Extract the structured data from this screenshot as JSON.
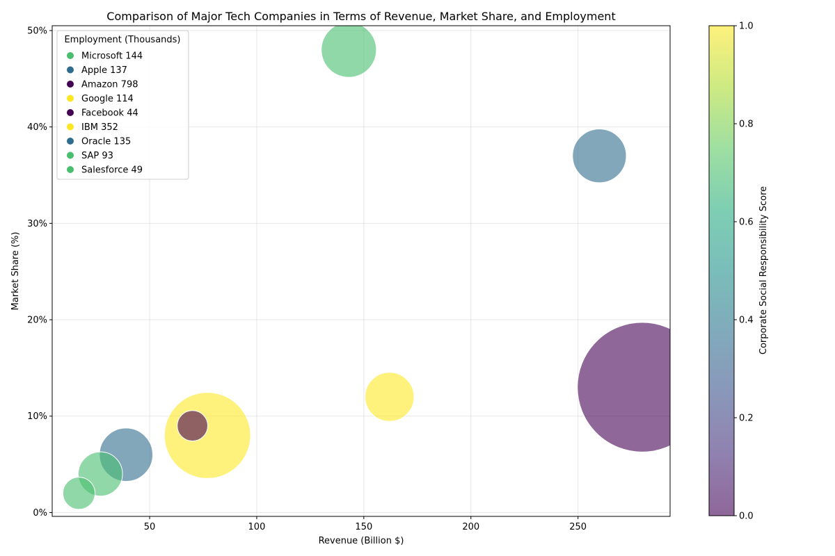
{
  "chart_data": {
    "type": "scatter",
    "title": "Comparison of Major Tech Companies in Terms of Revenue, Market Share, and Employment",
    "xlabel": "Revenue (Billion $)",
    "ylabel": "Market Share (%)",
    "xlim": [
      4.5,
      293
    ],
    "ylim": [
      -0.4,
      50.5
    ],
    "x_ticks": [
      50,
      100,
      150,
      200,
      250
    ],
    "y_ticks": [
      0,
      10,
      20,
      30,
      40,
      50
    ],
    "y_tick_suffix": "%",
    "grid": true,
    "colorbar": {
      "label": "Corporate Social Responsibility Score",
      "range": [
        0,
        1
      ],
      "ticks": [
        "0.0",
        "0.2",
        "0.4",
        "0.6",
        "0.8",
        "1.0"
      ],
      "colormap": "viridis"
    },
    "legend": {
      "title": "Employment (Thousands)",
      "placement": "top-left"
    },
    "points": [
      {
        "company": "Microsoft",
        "label": "Microsoft 144",
        "revenue": 143,
        "market_share": 48,
        "employment": 144,
        "csr": 0.7
      },
      {
        "company": "Apple",
        "label": "Apple 137",
        "revenue": 260,
        "market_share": 37,
        "employment": 137,
        "csr": 0.35
      },
      {
        "company": "Amazon",
        "label": "Amazon 798",
        "revenue": 280,
        "market_share": 13,
        "employment": 798,
        "csr": 0.0
      },
      {
        "company": "Google",
        "label": "Google 114",
        "revenue": 162,
        "market_share": 12,
        "employment": 114,
        "csr": 1.0
      },
      {
        "company": "Facebook",
        "label": "Facebook 44",
        "revenue": 70,
        "market_share": 9,
        "employment": 44,
        "csr": 0.0
      },
      {
        "company": "IBM",
        "label": "IBM 352",
        "revenue": 77,
        "market_share": 8,
        "employment": 352,
        "csr": 1.0
      },
      {
        "company": "Oracle",
        "label": "Oracle 135",
        "revenue": 39,
        "market_share": 6,
        "employment": 135,
        "csr": 0.35
      },
      {
        "company": "SAP",
        "label": "SAP 93",
        "revenue": 27,
        "market_share": 4,
        "employment": 93,
        "csr": 0.7
      },
      {
        "company": "Salesforce",
        "label": "Salesforce 49",
        "revenue": 17,
        "market_share": 2,
        "employment": 49,
        "csr": 0.7
      }
    ]
  }
}
